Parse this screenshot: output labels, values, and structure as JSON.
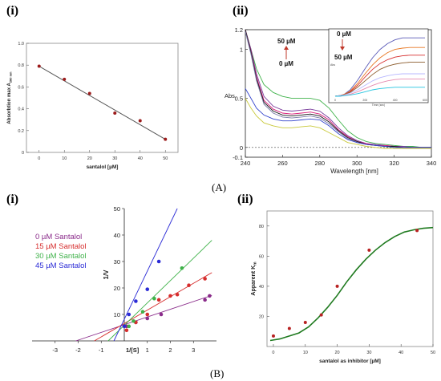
{
  "labels": {
    "A_i": "(i)",
    "A_ii": "(ii)",
    "A": "(A)",
    "B_i": "(i)",
    "B_ii": "(ii)",
    "B": "(B)"
  },
  "chart_data": [
    {
      "id": "A-i",
      "type": "scatter",
      "xlabel": "santalol [µM]",
      "ylabel": "Absorbtion max A",
      "ylabel_sub": "280 nm",
      "xlim": [
        -5,
        55
      ],
      "ylim": [
        0,
        1.0
      ],
      "xticks": [
        0,
        10,
        20,
        30,
        40,
        50
      ],
      "yticks": [
        0,
        0.2,
        0.4,
        0.6,
        0.8,
        1.0
      ],
      "ytick_labels": [
        "0",
        "0.2",
        "0.4",
        "0.6",
        "0.8",
        "1.0"
      ],
      "points": {
        "x": [
          0,
          10,
          20,
          30,
          40,
          50
        ],
        "y": [
          0.79,
          0.67,
          0.54,
          0.36,
          0.29,
          0.12
        ]
      },
      "fit": {
        "x": [
          0,
          50
        ],
        "y": [
          0.79,
          0.12
        ]
      },
      "colors": {
        "points": "#9c1c1c",
        "line": "#555555"
      }
    },
    {
      "id": "A-ii",
      "type": "line",
      "xlabel": "Wavelength [nm]",
      "ylabel": "Abs",
      "xlim": [
        240,
        340
      ],
      "ylim": [
        -0.1,
        1.2
      ],
      "xticks": [
        240,
        260,
        280,
        300,
        320,
        340
      ],
      "yticks": [
        -0.1,
        0,
        0.5,
        1,
        1.2
      ],
      "ytick_labels": [
        "-0.1",
        "0",
        "0.5",
        "1",
        "1.2"
      ],
      "annotations": {
        "top": "50 µM",
        "bottom": "0 µM"
      },
      "x": [
        240,
        243,
        246,
        250,
        255,
        260,
        265,
        270,
        275,
        280,
        285,
        290,
        295,
        300,
        305,
        310,
        315,
        320,
        325,
        330,
        335,
        340
      ],
      "series": [
        {
          "color": "#3fb24a",
          "values": [
            1.2,
            1.0,
            0.8,
            0.64,
            0.56,
            0.52,
            0.5,
            0.5,
            0.5,
            0.48,
            0.4,
            0.28,
            0.17,
            0.1,
            0.06,
            0.04,
            0.03,
            0.02,
            0.01,
            0.01,
            0.0,
            0.0
          ]
        },
        {
          "color": "#7b3f9e",
          "values": [
            1.2,
            1.0,
            0.75,
            0.52,
            0.42,
            0.38,
            0.37,
            0.38,
            0.39,
            0.37,
            0.3,
            0.2,
            0.12,
            0.07,
            0.04,
            0.03,
            0.02,
            0.01,
            0.01,
            0.0,
            0.0,
            0.0
          ]
        },
        {
          "color": "#d81b7a",
          "values": [
            1.2,
            0.98,
            0.72,
            0.48,
            0.39,
            0.35,
            0.34,
            0.35,
            0.36,
            0.34,
            0.28,
            0.18,
            0.11,
            0.06,
            0.04,
            0.02,
            0.02,
            0.01,
            0.0,
            0.0,
            0.0,
            0.0
          ]
        },
        {
          "color": "#1a1a1a",
          "values": [
            1.2,
            0.97,
            0.7,
            0.46,
            0.37,
            0.33,
            0.32,
            0.33,
            0.34,
            0.32,
            0.26,
            0.17,
            0.1,
            0.06,
            0.03,
            0.02,
            0.01,
            0.01,
            0.0,
            0.0,
            0.0,
            0.0
          ]
        },
        {
          "color": "#7a7aa8",
          "values": [
            1.18,
            0.95,
            0.68,
            0.44,
            0.35,
            0.31,
            0.3,
            0.31,
            0.32,
            0.3,
            0.24,
            0.16,
            0.09,
            0.05,
            0.03,
            0.02,
            0.01,
            0.0,
            0.0,
            0.0,
            0.0,
            0.0
          ]
        },
        {
          "color": "#3344cc",
          "values": [
            0.6,
            0.5,
            0.4,
            0.33,
            0.29,
            0.27,
            0.27,
            0.28,
            0.29,
            0.28,
            0.22,
            0.14,
            0.08,
            0.05,
            0.03,
            0.02,
            0.01,
            0.0,
            0.0,
            0.0,
            0.0,
            0.0
          ]
        },
        {
          "color": "#c9c93a",
          "values": [
            0.5,
            0.4,
            0.32,
            0.25,
            0.22,
            0.2,
            0.2,
            0.21,
            0.22,
            0.2,
            0.15,
            0.1,
            0.05,
            0.03,
            0.01,
            0.0,
            -0.01,
            -0.01,
            -0.01,
            -0.01,
            -0.01,
            -0.01
          ]
        }
      ],
      "inset": {
        "xlabel": "Time (sec)",
        "ylabel": "Abs",
        "annotations": {
          "top": "0 µM",
          "bottom": "50 µM"
        },
        "xlim": [
          0,
          600
        ],
        "ylim": [
          0,
          1
        ],
        "xticks": [
          0,
          200,
          400,
          600
        ],
        "x": [
          0,
          30,
          60,
          100,
          150,
          200,
          250,
          300,
          350,
          400,
          450,
          500,
          550,
          600
        ],
        "series": [
          {
            "color": "#5a5ab8",
            "values": [
              0,
              0.01,
              0.03,
              0.1,
              0.25,
              0.43,
              0.6,
              0.73,
              0.82,
              0.88,
              0.91,
              0.91,
              0.91,
              0.91
            ]
          },
          {
            "color": "#e87722",
            "values": [
              0,
              0.01,
              0.03,
              0.08,
              0.2,
              0.35,
              0.49,
              0.6,
              0.68,
              0.73,
              0.75,
              0.76,
              0.76,
              0.76
            ]
          },
          {
            "color": "#d62d2d",
            "values": [
              0,
              0.01,
              0.02,
              0.07,
              0.17,
              0.3,
              0.42,
              0.51,
              0.57,
              0.61,
              0.63,
              0.64,
              0.64,
              0.64
            ]
          },
          {
            "color": "#8a5a2a",
            "values": [
              0,
              0.01,
              0.02,
              0.06,
              0.14,
              0.24,
              0.34,
              0.42,
              0.47,
              0.5,
              0.52,
              0.53,
              0.53,
              0.53
            ]
          },
          {
            "color": "#b8b8ff",
            "values": [
              0,
              0.01,
              0.02,
              0.05,
              0.1,
              0.17,
              0.24,
              0.29,
              0.32,
              0.34,
              0.35,
              0.35,
              0.35,
              0.35
            ]
          },
          {
            "color": "#e58ab0",
            "values": [
              0,
              0.0,
              0.01,
              0.03,
              0.07,
              0.12,
              0.17,
              0.21,
              0.24,
              0.26,
              0.27,
              0.27,
              0.27,
              0.27
            ]
          },
          {
            "color": "#22c4e0",
            "values": [
              0,
              0.0,
              0.01,
              0.02,
              0.04,
              0.07,
              0.1,
              0.12,
              0.13,
              0.14,
              0.14,
              0.14,
              0.14,
              0.14
            ]
          }
        ]
      }
    },
    {
      "id": "B-i",
      "type": "scatter",
      "xlabel": "1/[S]",
      "ylabel": "1/V",
      "xlim": [
        -4,
        4
      ],
      "ylim": [
        0,
        50
      ],
      "xticks": [
        -3,
        -2,
        -1,
        1,
        2,
        3
      ],
      "yticks": [
        10,
        20,
        30,
        40,
        50
      ],
      "legend": [
        "0 µM Santalol",
        "15 µM Santalol",
        "30 µM Santalol",
        "45 µM Santalol"
      ],
      "series": [
        {
          "name": "0 µM Santalol",
          "color": "#8a2b8a",
          "x": [
            0.1,
            0.5,
            1.0,
            1.6,
            3.5,
            3.7
          ],
          "y": [
            5.5,
            7.0,
            8.5,
            10.0,
            15.5,
            17.0
          ],
          "fit": {
            "x": [
              -2.1,
              3.8
            ],
            "y": [
              0.0,
              17.2
            ]
          }
        },
        {
          "name": "15 µM Santalol",
          "color": "#d62d2d",
          "x": [
            0.1,
            0.5,
            1.0,
            1.5,
            2.0,
            2.3,
            2.8,
            3.5
          ],
          "y": [
            4.0,
            7.0,
            10.0,
            15.5,
            17.0,
            17.5,
            21.0,
            23.5
          ],
          "fit": {
            "x": [
              -1.3,
              3.8
            ],
            "y": [
              0.0,
              25.8
            ]
          }
        },
        {
          "name": "30 µM Santalol",
          "color": "#3fb24a",
          "x": [
            0.2,
            0.4,
            0.8,
            1.3,
            2.5
          ],
          "y": [
            5.5,
            7.5,
            11.0,
            16.0,
            27.5
          ],
          "fit": {
            "x": [
              -0.7,
              3.8
            ],
            "y": [
              0.0,
              38.0
            ]
          }
        },
        {
          "name": "45 µM Santalol",
          "color": "#2b2bd6",
          "x": [
            0.0,
            0.2,
            0.5,
            1.0,
            1.5
          ],
          "y": [
            5.5,
            10.0,
            15.0,
            19.5,
            30.0
          ],
          "fit": {
            "x": [
              -0.45,
              2.3
            ],
            "y": [
              0.0,
              50.0
            ]
          }
        }
      ]
    },
    {
      "id": "B-ii",
      "type": "scatter",
      "xlabel": "santalol as inhibitor [µM]",
      "ylabel": "Apparent K",
      "ylabel_sub": "m",
      "xlim": [
        -2,
        50
      ],
      "ylim": [
        0,
        90
      ],
      "xticks": [
        0,
        10,
        20,
        30,
        40,
        50
      ],
      "yticks": [
        20,
        40,
        60,
        80
      ],
      "points": {
        "x": [
          0,
          5,
          10,
          15,
          20,
          30,
          45
        ],
        "y": [
          7,
          12,
          16,
          21,
          40,
          64,
          77
        ]
      },
      "fit": {
        "x": [
          -1,
          2,
          5,
          8,
          11,
          14,
          17,
          20,
          23,
          26,
          29,
          32,
          35,
          38,
          41,
          44,
          47,
          50
        ],
        "y": [
          4,
          5,
          7,
          9,
          13,
          19,
          26,
          34,
          43,
          51,
          58,
          64,
          69,
          73,
          76,
          77.5,
          78.5,
          79
        ]
      },
      "colors": {
        "points": "#b82222",
        "line": "#1f7a1f"
      }
    }
  ]
}
